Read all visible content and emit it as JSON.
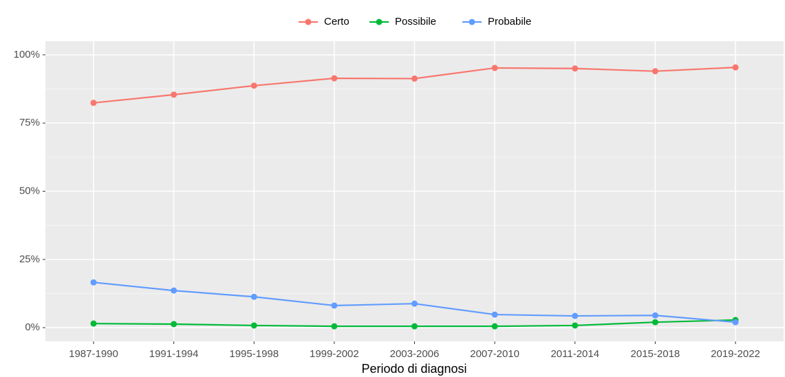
{
  "chart_data": {
    "type": "line",
    "x_label": "Periodo di diagnosi",
    "categories": [
      "1987-1990",
      "1991-1994",
      "1995-1998",
      "1999-2002",
      "2003-2006",
      "2007-2010",
      "2011-2014",
      "2015-2018",
      "2019-2022"
    ],
    "series": [
      {
        "name": "Certo",
        "color": "#F8766D",
        "values": [
          82.4,
          85.4,
          88.7,
          91.4,
          91.3,
          95.2,
          95.0,
          94.0,
          95.4
        ]
      },
      {
        "name": "Possibile",
        "color": "#00BA38",
        "values": [
          1.5,
          1.3,
          0.8,
          0.5,
          0.5,
          0.5,
          0.8,
          2.0,
          2.8
        ]
      },
      {
        "name": "Probabile",
        "color": "#619CFF",
        "values": [
          16.6,
          13.6,
          11.3,
          8.1,
          8.8,
          4.8,
          4.3,
          4.5,
          2.0
        ]
      }
    ],
    "ylim": [
      -5,
      105
    ],
    "yticks": [
      {
        "value": 0,
        "label": "0%"
      },
      {
        "value": 25,
        "label": "25%"
      },
      {
        "value": 50,
        "label": "50%"
      },
      {
        "value": 75,
        "label": "75%"
      },
      {
        "value": 100,
        "label": "100%"
      }
    ],
    "grid": true,
    "legend_position": "top"
  }
}
